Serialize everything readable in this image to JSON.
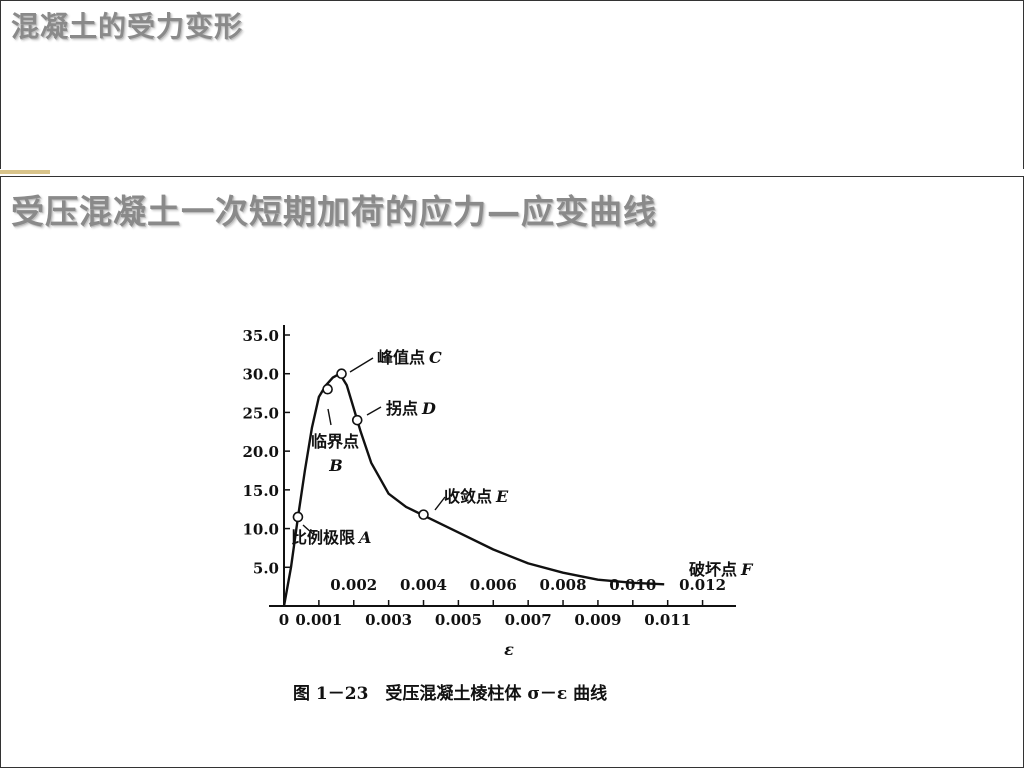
{
  "slide1": {
    "title": "混凝土的受力变形"
  },
  "slide2": {
    "title": "受压混凝土一次短期加荷的应力—应变曲线"
  },
  "chart_data": {
    "type": "line",
    "xlabel": "ε",
    "caption": "图 1－23　受压混凝土棱柱体 σ－ε 曲线",
    "xlim": [
      0,
      0.0125
    ],
    "ylim": [
      0,
      35
    ],
    "y_ticks": [
      "5.0",
      "10.0",
      "15.0",
      "20.0",
      "25.0",
      "30.0",
      "35.0"
    ],
    "x_ticks_lower": [
      "0",
      "0.001",
      "0.003",
      "0.005",
      "0.007",
      "0.009",
      "0.011"
    ],
    "x_ticks_upper": [
      "0.002",
      "0.004",
      "0.006",
      "0.008",
      "0.010",
      "0.012"
    ],
    "series": [
      {
        "x": [
          0,
          0.0002,
          0.0004,
          0.0006,
          0.0008,
          0.001,
          0.0012,
          0.0014,
          0.0016,
          0.0018,
          0.002,
          0.0022,
          0.0025,
          0.003,
          0.0035,
          0.004,
          0.005,
          0.006,
          0.007,
          0.008,
          0.009,
          0.01,
          0.0109
        ],
        "y": [
          0,
          5.0,
          11.5,
          17.5,
          23.0,
          27.0,
          28.5,
          29.5,
          30.0,
          28.5,
          25.5,
          22.5,
          18.5,
          14.5,
          12.8,
          11.7,
          9.5,
          7.3,
          5.5,
          4.3,
          3.4,
          3.0,
          2.8
        ]
      }
    ],
    "points": [
      {
        "id": "A",
        "label": "比例极限",
        "letter": "A",
        "x": 0.0004,
        "y": 11.5
      },
      {
        "id": "B",
        "label": "临界点",
        "letter": "B",
        "x": 0.00125,
        "y": 28.0
      },
      {
        "id": "C",
        "label": "峰值点",
        "letter": "C",
        "x": 0.00165,
        "y": 30.0
      },
      {
        "id": "D",
        "label": "拐点",
        "letter": "D",
        "x": 0.0021,
        "y": 24.0
      },
      {
        "id": "E",
        "label": "收敛点",
        "letter": "E",
        "x": 0.004,
        "y": 11.8
      },
      {
        "id": "F",
        "label": "破坏点",
        "letter": "F"
      }
    ]
  }
}
